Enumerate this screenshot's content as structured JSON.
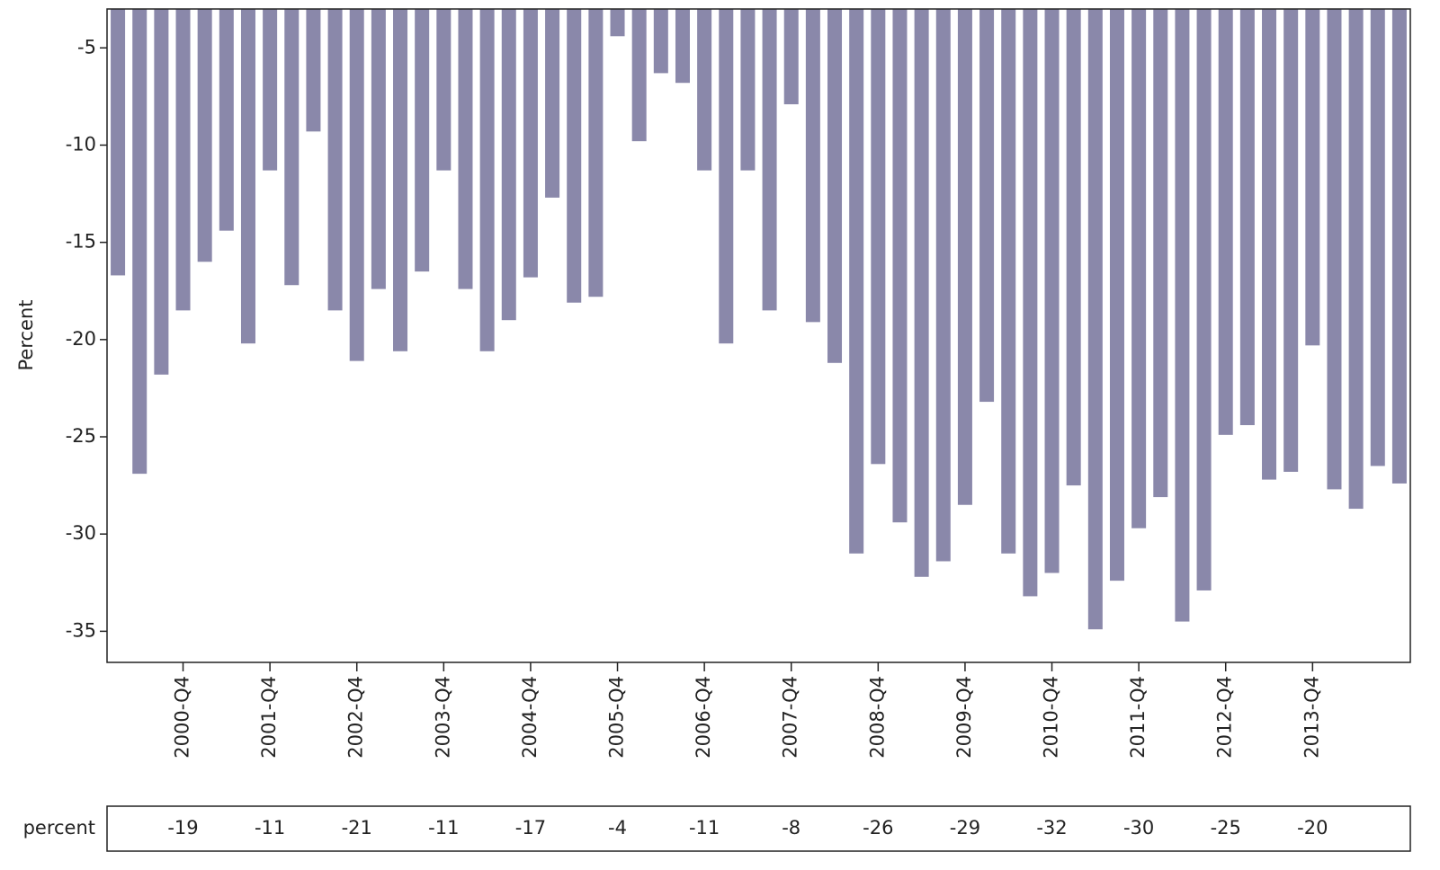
{
  "chart_data": {
    "type": "bar",
    "y_label": "Percent",
    "categories": [
      null,
      null,
      null,
      "2000-Q4",
      null,
      null,
      null,
      "2001-Q4",
      null,
      null,
      null,
      "2002-Q4",
      null,
      null,
      null,
      "2003-Q4",
      null,
      null,
      null,
      "2004-Q4",
      null,
      null,
      null,
      "2005-Q4",
      null,
      null,
      null,
      "2006-Q4",
      null,
      null,
      null,
      "2007-Q4",
      null,
      null,
      null,
      "2008-Q4",
      null,
      null,
      null,
      "2009-Q4",
      null,
      null,
      null,
      "2010-Q4",
      null,
      null,
      null,
      "2011-Q4",
      null,
      null,
      null,
      "2012-Q4",
      null,
      null,
      null,
      "2013-Q4",
      null,
      null,
      null,
      null
    ],
    "values": [
      -16.7,
      -26.9,
      -21.8,
      -18.5,
      -16.0,
      -14.4,
      -20.2,
      -11.3,
      -17.2,
      -9.3,
      -18.5,
      -21.1,
      -17.4,
      -20.6,
      -16.5,
      -11.3,
      -17.4,
      -20.6,
      -19.0,
      -16.8,
      -12.7,
      -18.1,
      -17.8,
      -4.4,
      -9.8,
      -6.3,
      -6.8,
      -11.3,
      -20.2,
      -11.3,
      -18.5,
      -7.9,
      -19.1,
      -21.2,
      -31.0,
      -26.4,
      -29.4,
      -32.2,
      -31.4,
      -28.5,
      -23.2,
      -31.0,
      -33.2,
      -32.0,
      -27.5,
      -34.9,
      -32.4,
      -29.7,
      -28.1,
      -34.5,
      -32.9,
      -24.9,
      -24.4,
      -27.2,
      -26.8,
      -20.3,
      -27.7,
      -28.7,
      -26.5,
      -27.4
    ],
    "color": "#8a88aa",
    "ylim": [
      -36.6,
      -3
    ],
    "yticks": [
      -5,
      -10,
      -15,
      -20,
      -25,
      -30,
      -35
    ]
  },
  "table": {
    "label": "percent",
    "values": [
      -19,
      -11,
      -21,
      -11,
      -17,
      -4,
      -11,
      -8,
      -26,
      -29,
      -32,
      -30,
      -25,
      -20
    ]
  }
}
